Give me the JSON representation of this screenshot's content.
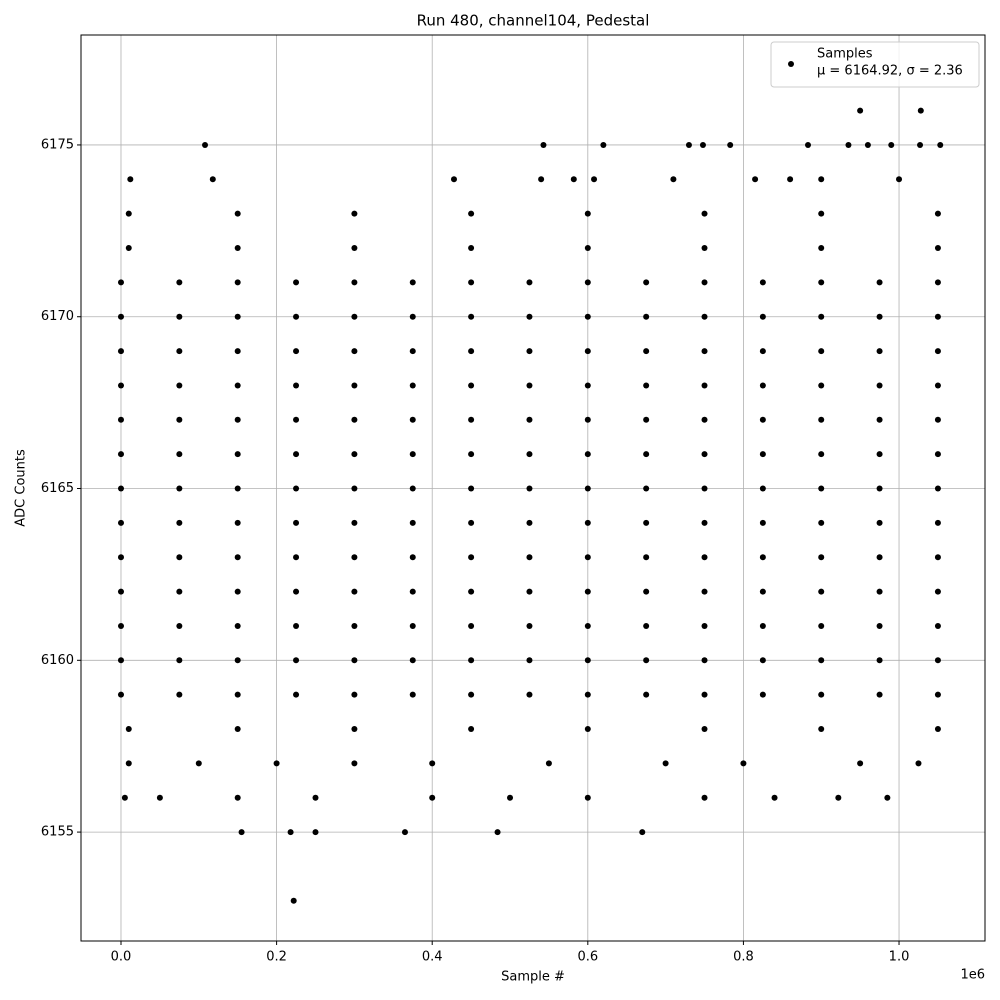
{
  "chart_data": {
    "type": "scatter",
    "title": "Run 480, channel104, Pedestal",
    "xlabel": "Sample #",
    "ylabel": "ADC Counts",
    "x_offset_label": "1e6",
    "legend_note": "μ = 6164.92, σ = 2.36",
    "legend_position": "upper right",
    "grid": true,
    "xlim": [
      -51400,
      1110500
    ],
    "ylim": [
      6151.83,
      6178.2
    ],
    "xticks": [
      {
        "value": 0,
        "label": "0.0"
      },
      {
        "value": 200000,
        "label": "0.2"
      },
      {
        "value": 400000,
        "label": "0.4"
      },
      {
        "value": 600000,
        "label": "0.6"
      },
      {
        "value": 800000,
        "label": "0.8"
      },
      {
        "value": 1000000,
        "label": "1.0"
      }
    ],
    "yticks": [
      6155,
      6160,
      6165,
      6170,
      6175
    ],
    "series": [
      {
        "name": "Samples",
        "color": "#000000",
        "x": [
          0,
          75000,
          150000,
          225000,
          300000,
          375000,
          450000,
          525000,
          600000,
          675000,
          750000,
          825000,
          900000,
          975000,
          1050000,
          0,
          75000,
          150000,
          225000,
          300000,
          375000,
          450000,
          525000,
          600000,
          675000,
          750000,
          825000,
          900000,
          975000,
          1050000,
          0,
          75000,
          150000,
          225000,
          300000,
          375000,
          450000,
          525000,
          600000,
          675000,
          750000,
          825000,
          900000,
          975000,
          1050000,
          0,
          75000,
          150000,
          225000,
          300000,
          375000,
          450000,
          525000,
          600000,
          675000,
          750000,
          825000,
          900000,
          975000,
          1050000,
          0,
          75000,
          150000,
          225000,
          300000,
          375000,
          450000,
          525000,
          600000,
          675000,
          750000,
          825000,
          900000,
          975000,
          1050000,
          0,
          75000,
          150000,
          225000,
          300000,
          375000,
          450000,
          525000,
          600000,
          675000,
          750000,
          825000,
          900000,
          975000,
          1050000,
          0,
          75000,
          150000,
          225000,
          300000,
          375000,
          450000,
          525000,
          600000,
          675000,
          750000,
          825000,
          900000,
          975000,
          1050000,
          0,
          75000,
          150000,
          225000,
          300000,
          375000,
          450000,
          525000,
          600000,
          675000,
          750000,
          825000,
          900000,
          975000,
          1050000,
          0,
          75000,
          150000,
          225000,
          300000,
          375000,
          450000,
          525000,
          600000,
          675000,
          750000,
          825000,
          900000,
          975000,
          1050000,
          0,
          75000,
          150000,
          225000,
          300000,
          375000,
          450000,
          525000,
          600000,
          675000,
          750000,
          825000,
          900000,
          975000,
          1050000,
          0,
          75000,
          150000,
          225000,
          300000,
          375000,
          450000,
          525000,
          600000,
          675000,
          750000,
          825000,
          900000,
          975000,
          1050000,
          0,
          75000,
          150000,
          225000,
          300000,
          375000,
          450000,
          525000,
          600000,
          675000,
          750000,
          825000,
          900000,
          975000,
          1050000,
          0,
          75000,
          150000,
          225000,
          300000,
          375000,
          450000,
          525000,
          600000,
          675000,
          750000,
          825000,
          900000,
          975000,
          1050000,
          10000,
          150000,
          300000,
          450000,
          600000,
          750000,
          900000,
          1050000,
          10000,
          150000,
          300000,
          450000,
          600000,
          750000,
          900000,
          1050000,
          10000,
          150000,
          300000,
          450000,
          600000,
          750000,
          900000,
          1050000,
          108000,
          543000,
          620000,
          730000,
          748000,
          783000,
          883000,
          935000,
          960000,
          990000,
          1027000,
          1053000,
          950000,
          1028000,
          12000,
          118000,
          428000,
          540000,
          582000,
          608000,
          710000,
          815000,
          860000,
          900000,
          1000000,
          155000,
          218000,
          250000,
          365000,
          484000,
          670000,
          222000,
          5000,
          50000,
          150000,
          250000,
          400000,
          500000,
          600000,
          750000,
          840000,
          922000,
          985000,
          10000,
          100000,
          200000,
          300000,
          400000,
          550000,
          700000,
          800000,
          950000,
          1025000
        ],
        "values": [
          6159,
          6159,
          6159,
          6159,
          6159,
          6159,
          6159,
          6159,
          6159,
          6159,
          6159,
          6159,
          6159,
          6159,
          6159,
          6160,
          6160,
          6160,
          6160,
          6160,
          6160,
          6160,
          6160,
          6160,
          6160,
          6160,
          6160,
          6160,
          6160,
          6160,
          6161,
          6161,
          6161,
          6161,
          6161,
          6161,
          6161,
          6161,
          6161,
          6161,
          6161,
          6161,
          6161,
          6161,
          6161,
          6162,
          6162,
          6162,
          6162,
          6162,
          6162,
          6162,
          6162,
          6162,
          6162,
          6162,
          6162,
          6162,
          6162,
          6162,
          6163,
          6163,
          6163,
          6163,
          6163,
          6163,
          6163,
          6163,
          6163,
          6163,
          6163,
          6163,
          6163,
          6163,
          6163,
          6164,
          6164,
          6164,
          6164,
          6164,
          6164,
          6164,
          6164,
          6164,
          6164,
          6164,
          6164,
          6164,
          6164,
          6164,
          6165,
          6165,
          6165,
          6165,
          6165,
          6165,
          6165,
          6165,
          6165,
          6165,
          6165,
          6165,
          6165,
          6165,
          6165,
          6166,
          6166,
          6166,
          6166,
          6166,
          6166,
          6166,
          6166,
          6166,
          6166,
          6166,
          6166,
          6166,
          6166,
          6166,
          6167,
          6167,
          6167,
          6167,
          6167,
          6167,
          6167,
          6167,
          6167,
          6167,
          6167,
          6167,
          6167,
          6167,
          6167,
          6168,
          6168,
          6168,
          6168,
          6168,
          6168,
          6168,
          6168,
          6168,
          6168,
          6168,
          6168,
          6168,
          6168,
          6168,
          6169,
          6169,
          6169,
          6169,
          6169,
          6169,
          6169,
          6169,
          6169,
          6169,
          6169,
          6169,
          6169,
          6169,
          6169,
          6170,
          6170,
          6170,
          6170,
          6170,
          6170,
          6170,
          6170,
          6170,
          6170,
          6170,
          6170,
          6170,
          6170,
          6170,
          6171,
          6171,
          6171,
          6171,
          6171,
          6171,
          6171,
          6171,
          6171,
          6171,
          6171,
          6171,
          6171,
          6171,
          6171,
          6158,
          6158,
          6158,
          6158,
          6158,
          6158,
          6158,
          6158,
          6172,
          6172,
          6172,
          6172,
          6172,
          6172,
          6172,
          6172,
          6173,
          6173,
          6173,
          6173,
          6173,
          6173,
          6173,
          6173,
          6175,
          6175,
          6175,
          6175,
          6175,
          6175,
          6175,
          6175,
          6175,
          6175,
          6175,
          6175,
          6176,
          6176,
          6174,
          6174,
          6174,
          6174,
          6174,
          6174,
          6174,
          6174,
          6174,
          6174,
          6174,
          6155,
          6155,
          6155,
          6155,
          6155,
          6155,
          6153,
          6156,
          6156,
          6156,
          6156,
          6156,
          6156,
          6156,
          6156,
          6156,
          6156,
          6156,
          6157,
          6157,
          6157,
          6157,
          6157,
          6157,
          6157,
          6157,
          6157,
          6157
        ]
      }
    ]
  }
}
